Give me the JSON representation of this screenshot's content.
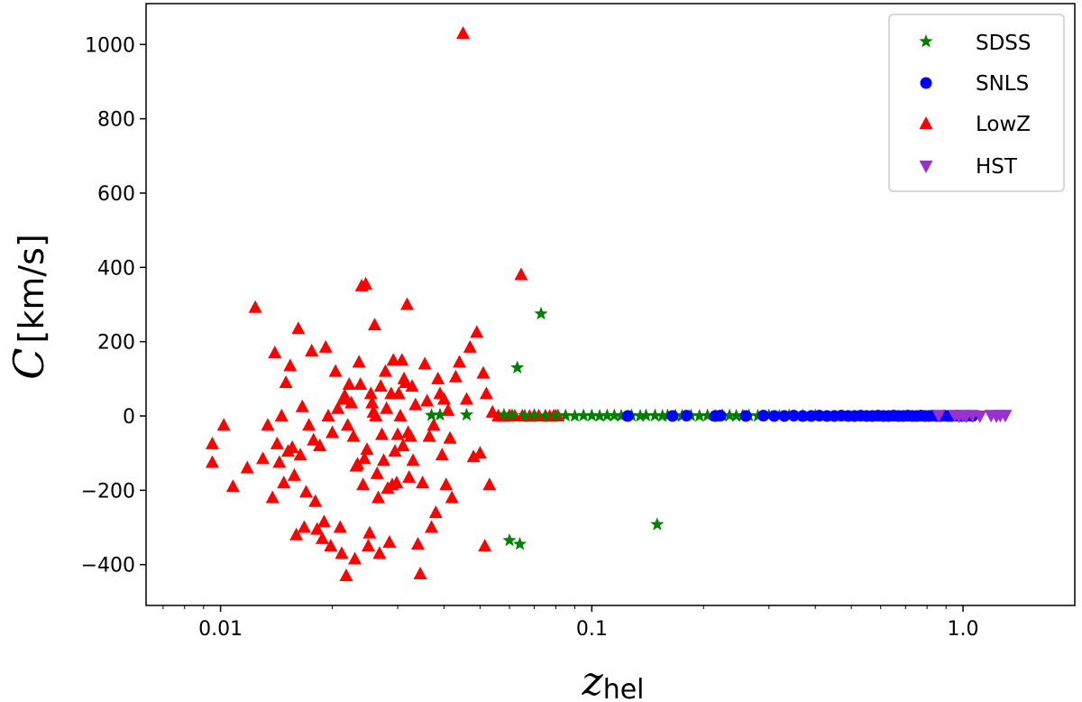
{
  "chart_data": {
    "type": "scatter",
    "title": "",
    "xlabel": "",
    "ylabel": "",
    "xlabel_parts": {
      "base": "z",
      "sub": "hel"
    },
    "ylabel_parts": {
      "symbol": "C",
      "unit": "[km/s]"
    },
    "x_scale": "log",
    "xlim": [
      0.0063,
      2.0
    ],
    "ylim": [
      -510,
      1110
    ],
    "x_ticks": [
      0.01,
      0.1,
      1.0
    ],
    "x_tick_labels": [
      "0.01",
      "0.1",
      "1.0"
    ],
    "y_ticks": [
      -400,
      -200,
      0,
      200,
      400,
      600,
      800,
      1000
    ],
    "y_tick_labels": [
      "−400",
      "−200",
      "0",
      "200",
      "400",
      "600",
      "800",
      "1000"
    ],
    "grid": false,
    "legend_position": "top-right",
    "series": [
      {
        "name": "SDSS",
        "marker": "star",
        "color": "#008000",
        "points": [
          [
            0.037,
            2
          ],
          [
            0.039,
            3
          ],
          [
            0.046,
            3
          ],
          [
            0.058,
            3
          ],
          [
            0.061,
            2
          ],
          [
            0.063,
            130
          ],
          [
            0.073,
            275
          ],
          [
            0.06,
            -335
          ],
          [
            0.064,
            -345
          ],
          [
            0.15,
            -292
          ],
          [
            0.066,
            1
          ],
          [
            0.07,
            1
          ],
          [
            0.075,
            0
          ],
          [
            0.08,
            1
          ],
          [
            0.085,
            1
          ],
          [
            0.09,
            0
          ],
          [
            0.095,
            1
          ],
          [
            0.1,
            1
          ],
          [
            0.105,
            0
          ],
          [
            0.11,
            1
          ],
          [
            0.115,
            1
          ],
          [
            0.12,
            0
          ],
          [
            0.128,
            1
          ],
          [
            0.135,
            0
          ],
          [
            0.14,
            1
          ],
          [
            0.148,
            1
          ],
          [
            0.155,
            0
          ],
          [
            0.16,
            1
          ],
          [
            0.168,
            1
          ],
          [
            0.175,
            0
          ],
          [
            0.185,
            1
          ],
          [
            0.195,
            0
          ],
          [
            0.205,
            1
          ],
          [
            0.215,
            0
          ],
          [
            0.225,
            1
          ],
          [
            0.235,
            1
          ],
          [
            0.245,
            0
          ],
          [
            0.255,
            1
          ],
          [
            0.265,
            1
          ],
          [
            0.28,
            0
          ],
          [
            0.3,
            1
          ],
          [
            0.32,
            0
          ],
          [
            0.34,
            1
          ],
          [
            0.37,
            0
          ],
          [
            0.4,
            1
          ]
        ]
      },
      {
        "name": "SNLS",
        "marker": "circle",
        "color": "#0000ff",
        "points": [
          [
            0.125,
            0
          ],
          [
            0.165,
            0
          ],
          [
            0.18,
            1
          ],
          [
            0.215,
            0
          ],
          [
            0.222,
            1
          ],
          [
            0.26,
            0
          ],
          [
            0.29,
            1
          ],
          [
            0.31,
            0
          ],
          [
            0.33,
            0
          ],
          [
            0.35,
            1
          ],
          [
            0.37,
            0
          ],
          [
            0.39,
            0
          ],
          [
            0.41,
            1
          ],
          [
            0.43,
            0
          ],
          [
            0.45,
            0
          ],
          [
            0.47,
            1
          ],
          [
            0.49,
            0
          ],
          [
            0.51,
            0
          ],
          [
            0.53,
            1
          ],
          [
            0.55,
            0
          ],
          [
            0.57,
            0
          ],
          [
            0.59,
            1
          ],
          [
            0.61,
            0
          ],
          [
            0.63,
            0
          ],
          [
            0.65,
            1
          ],
          [
            0.67,
            0
          ],
          [
            0.69,
            0
          ],
          [
            0.71,
            1
          ],
          [
            0.73,
            0
          ],
          [
            0.75,
            0
          ],
          [
            0.77,
            1
          ],
          [
            0.79,
            0
          ],
          [
            0.81,
            0
          ],
          [
            0.83,
            1
          ],
          [
            0.85,
            0
          ],
          [
            0.87,
            0
          ],
          [
            0.89,
            1
          ],
          [
            0.91,
            0
          ],
          [
            0.93,
            0
          ],
          [
            0.96,
            1
          ],
          [
            0.99,
            0
          ],
          [
            1.02,
            0
          ],
          [
            1.06,
            0
          ]
        ]
      },
      {
        "name": "LowZ",
        "marker": "triangle-up",
        "color": "#ff0000",
        "points": [
          [
            0.0095,
            -75
          ],
          [
            0.0095,
            -125
          ],
          [
            0.0102,
            -25
          ],
          [
            0.0108,
            -190
          ],
          [
            0.0118,
            -140
          ],
          [
            0.0124,
            292
          ],
          [
            0.013,
            -115
          ],
          [
            0.0134,
            -25
          ],
          [
            0.0138,
            -220
          ],
          [
            0.014,
            170
          ],
          [
            0.0142,
            -75
          ],
          [
            0.0144,
            -125
          ],
          [
            0.0146,
            0
          ],
          [
            0.0148,
            -180
          ],
          [
            0.015,
            90
          ],
          [
            0.0152,
            -95
          ],
          [
            0.0154,
            135
          ],
          [
            0.0156,
            -85
          ],
          [
            0.0158,
            -160
          ],
          [
            0.016,
            -320
          ],
          [
            0.0162,
            235
          ],
          [
            0.0164,
            -105
          ],
          [
            0.0166,
            25
          ],
          [
            0.0168,
            -300
          ],
          [
            0.017,
            -205
          ],
          [
            0.0173,
            -25
          ],
          [
            0.0176,
            175
          ],
          [
            0.0178,
            -65
          ],
          [
            0.018,
            -230
          ],
          [
            0.0182,
            -305
          ],
          [
            0.0185,
            -80
          ],
          [
            0.0188,
            -330
          ],
          [
            0.019,
            -285
          ],
          [
            0.0192,
            185
          ],
          [
            0.0195,
            0
          ],
          [
            0.0198,
            -350
          ],
          [
            0.02,
            -45
          ],
          [
            0.0204,
            120
          ],
          [
            0.0207,
            20
          ],
          [
            0.021,
            -300
          ],
          [
            0.0212,
            -370
          ],
          [
            0.0214,
            45
          ],
          [
            0.0216,
            55
          ],
          [
            0.0218,
            -430
          ],
          [
            0.022,
            -25
          ],
          [
            0.0222,
            85
          ],
          [
            0.0225,
            35
          ],
          [
            0.0228,
            -55
          ],
          [
            0.023,
            -385
          ],
          [
            0.0232,
            -135
          ],
          [
            0.0234,
            -130
          ],
          [
            0.0236,
            145
          ],
          [
            0.0238,
            85
          ],
          [
            0.024,
            350
          ],
          [
            0.0242,
            -185
          ],
          [
            0.0244,
            -115
          ],
          [
            0.0246,
            355
          ],
          [
            0.0248,
            -90
          ],
          [
            0.025,
            -350
          ],
          [
            0.0252,
            -315
          ],
          [
            0.0254,
            60
          ],
          [
            0.0256,
            35
          ],
          [
            0.0258,
            10
          ],
          [
            0.026,
            245
          ],
          [
            0.0262,
            0
          ],
          [
            0.0264,
            -155
          ],
          [
            0.0266,
            -220
          ],
          [
            0.0268,
            -370
          ],
          [
            0.027,
            80
          ],
          [
            0.0272,
            -50
          ],
          [
            0.0275,
            -120
          ],
          [
            0.0278,
            120
          ],
          [
            0.028,
            20
          ],
          [
            0.0282,
            -195
          ],
          [
            0.0285,
            -340
          ],
          [
            0.0288,
            60
          ],
          [
            0.029,
            -185
          ],
          [
            0.0292,
            150
          ],
          [
            0.0295,
            -95
          ],
          [
            0.0298,
            -180
          ],
          [
            0.03,
            -50
          ],
          [
            0.0302,
            60
          ],
          [
            0.0305,
            0
          ],
          [
            0.0308,
            150
          ],
          [
            0.031,
            -80
          ],
          [
            0.0312,
            100
          ],
          [
            0.0315,
            90
          ],
          [
            0.0318,
            300
          ],
          [
            0.032,
            -45
          ],
          [
            0.0322,
            -165
          ],
          [
            0.0325,
            -55
          ],
          [
            0.0328,
            80
          ],
          [
            0.033,
            -120
          ],
          [
            0.0335,
            30
          ],
          [
            0.034,
            -345
          ],
          [
            0.0345,
            -425
          ],
          [
            0.035,
            -180
          ],
          [
            0.0355,
            140
          ],
          [
            0.036,
            40
          ],
          [
            0.0365,
            -55
          ],
          [
            0.037,
            -300
          ],
          [
            0.0375,
            -25
          ],
          [
            0.038,
            -260
          ],
          [
            0.0385,
            100
          ],
          [
            0.039,
            60
          ],
          [
            0.0395,
            -105
          ],
          [
            0.04,
            45
          ],
          [
            0.0405,
            -185
          ],
          [
            0.041,
            15
          ],
          [
            0.0415,
            -60
          ],
          [
            0.042,
            -220
          ],
          [
            0.043,
            105
          ],
          [
            0.044,
            145
          ],
          [
            0.045,
            1030
          ],
          [
            0.046,
            45
          ],
          [
            0.047,
            185
          ],
          [
            0.048,
            -110
          ],
          [
            0.049,
            225
          ],
          [
            0.05,
            -100
          ],
          [
            0.051,
            115
          ],
          [
            0.0515,
            -350
          ],
          [
            0.052,
            60
          ],
          [
            0.053,
            -185
          ],
          [
            0.054,
            10
          ],
          [
            0.0645,
            380
          ],
          [
            0.056,
            0
          ],
          [
            0.058,
            -1
          ],
          [
            0.06,
            1
          ],
          [
            0.062,
            0
          ],
          [
            0.065,
            0
          ],
          [
            0.068,
            -1
          ],
          [
            0.07,
            1
          ],
          [
            0.072,
            0
          ],
          [
            0.075,
            0
          ],
          [
            0.077,
            -1
          ],
          [
            0.079,
            0
          ],
          [
            0.081,
            0
          ]
        ]
      },
      {
        "name": "HST",
        "marker": "triangle-down",
        "color": "#9932cc",
        "points": [
          [
            0.86,
            2
          ],
          [
            0.95,
            2
          ],
          [
            0.975,
            0
          ],
          [
            1.0,
            2
          ],
          [
            1.02,
            0
          ],
          [
            1.06,
            2
          ],
          [
            1.11,
            0
          ],
          [
            1.19,
            2
          ],
          [
            1.23,
            0
          ],
          [
            1.26,
            2
          ],
          [
            1.3,
            2
          ]
        ]
      }
    ]
  }
}
